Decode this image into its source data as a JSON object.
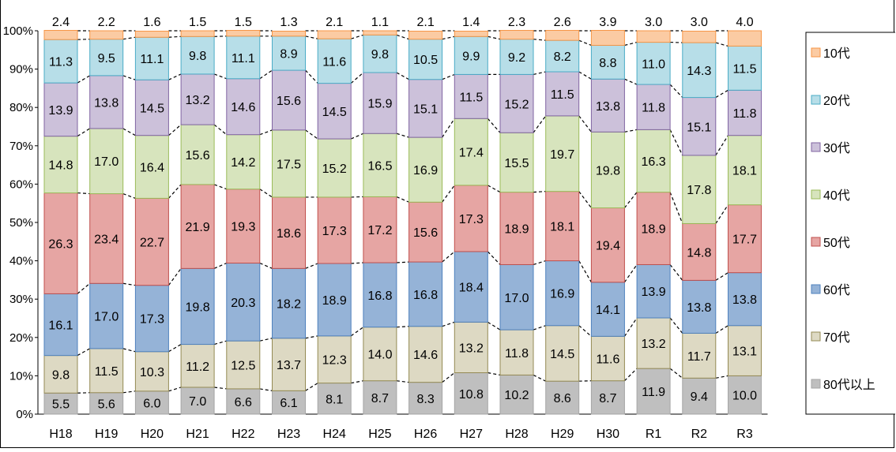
{
  "chart_data": {
    "type": "bar",
    "stacked": true,
    "percent": true,
    "categories": [
      "H18",
      "H19",
      "H20",
      "H21",
      "H22",
      "H23",
      "H24",
      "H25",
      "H26",
      "H27",
      "H28",
      "H29",
      "H30",
      "R1",
      "R2",
      "R3"
    ],
    "series": [
      {
        "name": "80代以上",
        "color": "#BFBFBF",
        "values": [
          5.5,
          5.6,
          6.0,
          7.0,
          6.6,
          6.1,
          8.1,
          8.7,
          8.3,
          10.8,
          10.2,
          8.6,
          8.7,
          11.9,
          9.4,
          10.0
        ]
      },
      {
        "name": "70代",
        "color": "#DDD9C3",
        "values": [
          9.8,
          11.5,
          10.3,
          11.2,
          12.5,
          13.7,
          12.3,
          14.0,
          14.6,
          13.2,
          11.8,
          14.5,
          11.6,
          13.2,
          11.7,
          13.1
        ]
      },
      {
        "name": "60代",
        "color": "#95B3D7",
        "values": [
          16.1,
          17.0,
          17.3,
          19.8,
          20.3,
          18.2,
          18.9,
          16.8,
          16.8,
          18.4,
          17.0,
          16.9,
          14.1,
          13.9,
          13.8,
          13.8
        ]
      },
      {
        "name": "50代",
        "color": "#E6A5A3",
        "values": [
          26.3,
          23.4,
          22.7,
          21.9,
          19.3,
          18.6,
          17.3,
          17.2,
          15.6,
          17.3,
          18.9,
          18.1,
          19.4,
          18.9,
          14.8,
          17.7
        ]
      },
      {
        "name": "40代",
        "color": "#D7E4BD",
        "values": [
          14.8,
          17.0,
          16.4,
          15.6,
          14.2,
          17.5,
          15.2,
          16.5,
          16.9,
          17.4,
          15.5,
          19.7,
          19.8,
          16.3,
          17.8,
          18.1
        ]
      },
      {
        "name": "30代",
        "color": "#CCC1DA",
        "values": [
          13.9,
          13.8,
          14.5,
          13.2,
          14.6,
          15.6,
          14.5,
          15.9,
          15.1,
          11.5,
          15.2,
          11.5,
          13.8,
          11.8,
          15.1,
          11.8
        ]
      },
      {
        "name": "20代",
        "color": "#B7DEE8",
        "values": [
          11.3,
          9.5,
          11.1,
          9.8,
          11.1,
          8.9,
          11.6,
          9.8,
          10.5,
          9.9,
          9.2,
          8.2,
          8.8,
          11.0,
          14.3,
          11.5
        ]
      },
      {
        "name": "10代",
        "color": "#FBCBA3",
        "values": [
          2.4,
          2.2,
          1.6,
          1.5,
          1.5,
          1.3,
          2.1,
          1.1,
          2.1,
          1.4,
          2.3,
          2.6,
          3.9,
          3.0,
          3.0,
          4.0
        ]
      }
    ],
    "border_colors": {
      "80代以上": "#A6A6A6",
      "70代": "#948A54",
      "60代": "#4F81BD",
      "50代": "#C0504D",
      "40代": "#9BBB59",
      "30代": "#8064A2",
      "20代": "#4BACC6",
      "10代": "#F79646"
    },
    "y_ticks": [
      "0%",
      "10%",
      "20%",
      "30%",
      "40%",
      "50%",
      "60%",
      "70%",
      "80%",
      "90%",
      "100%"
    ],
    "ylim": [
      0,
      100
    ],
    "grid": false,
    "legend": {
      "position": "right",
      "order": [
        "10代",
        "20代",
        "30代",
        "40代",
        "50代",
        "60代",
        "70代",
        "80代以上"
      ]
    }
  }
}
